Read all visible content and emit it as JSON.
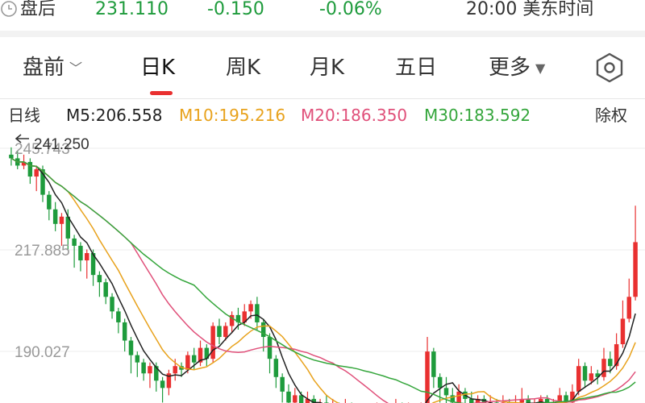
{
  "quote": {
    "session_label": "盘后",
    "price": "231.110",
    "change": "-0.150",
    "change_pct": "-0.06%",
    "time": "20:00 美东时间",
    "down_color": "#1e9b3c",
    "clock_icon": "clock-icon"
  },
  "tabs": [
    {
      "label": "盘前",
      "has_dropdown": true
    },
    {
      "label": "日K",
      "active": true
    },
    {
      "label": "周K"
    },
    {
      "label": "月K"
    },
    {
      "label": "五日"
    },
    {
      "label": "更多",
      "has_dropdown": true
    }
  ],
  "settings_icon": "hexagon-settings-icon",
  "ma_bar": {
    "label": "日线",
    "ma5": "M5:206.558",
    "ma10": "M10:195.216",
    "ma20": "M20:186.350",
    "ma30": "M30:183.592",
    "right_label": "除权"
  },
  "chart_data": {
    "type": "candlestick",
    "y_tick_labels": [
      "245.743",
      "217.885",
      "190.027"
    ],
    "y_ticks": [
      245.743,
      217.885,
      190.027
    ],
    "high_marker": "241.250",
    "up_color": "#e93030",
    "down_color": "#1e9b3c",
    "ma_colors": {
      "ma5": "#222222",
      "ma10": "#e8a21c",
      "ma20": "#e0507a",
      "ma30": "#35a63c"
    },
    "candles": [
      [
        244,
        243,
        246,
        241
      ],
      [
        243,
        241,
        245,
        240
      ],
      [
        241,
        242,
        244,
        240
      ],
      [
        242,
        238,
        243,
        236
      ],
      [
        238,
        240,
        241,
        234
      ],
      [
        240,
        233,
        241,
        231
      ],
      [
        233,
        229,
        234,
        226
      ],
      [
        229,
        225,
        231,
        223
      ],
      [
        225,
        227,
        228,
        219
      ],
      [
        227,
        221,
        229,
        218
      ],
      [
        221,
        219,
        222,
        213
      ],
      [
        219,
        215,
        220,
        212
      ],
      [
        215,
        217,
        218,
        210
      ],
      [
        217,
        211,
        218,
        208
      ],
      [
        211,
        209,
        212,
        205
      ],
      [
        209,
        205,
        210,
        203
      ],
      [
        205,
        201,
        206,
        199
      ],
      [
        201,
        198,
        202,
        195
      ],
      [
        198,
        193,
        199,
        190
      ],
      [
        193,
        189,
        194,
        184
      ],
      [
        189,
        187,
        190,
        183
      ],
      [
        187,
        184,
        188,
        182
      ],
      [
        184,
        186,
        187,
        180
      ],
      [
        186,
        182,
        187,
        179
      ],
      [
        182,
        180,
        183,
        176
      ],
      [
        180,
        184,
        185,
        178
      ],
      [
        184,
        186,
        188,
        182
      ],
      [
        186,
        185,
        187,
        183
      ],
      [
        185,
        189,
        190,
        184
      ],
      [
        189,
        187,
        191,
        185
      ],
      [
        187,
        191,
        193,
        186
      ],
      [
        191,
        188,
        192,
        186
      ],
      [
        188,
        197,
        198,
        187
      ],
      [
        197,
        194,
        199,
        192
      ],
      [
        194,
        197,
        198,
        193
      ],
      [
        197,
        200,
        201,
        195
      ],
      [
        200,
        198,
        202,
        196
      ],
      [
        198,
        201,
        203,
        197
      ],
      [
        201,
        203,
        204,
        199
      ],
      [
        203,
        198,
        205,
        196
      ],
      [
        198,
        194,
        199,
        190
      ],
      [
        194,
        188,
        195,
        184
      ],
      [
        188,
        183,
        189,
        180
      ],
      [
        183,
        179,
        184,
        176
      ],
      [
        179,
        176,
        181,
        174
      ],
      [
        176,
        178,
        180,
        174
      ],
      [
        178,
        175,
        179,
        173
      ],
      [
        175,
        177,
        179,
        174
      ],
      [
        177,
        174,
        178,
        172
      ],
      [
        174,
        176,
        177,
        172
      ],
      [
        176,
        174,
        178,
        172
      ],
      [
        174,
        175,
        177,
        173
      ],
      [
        175,
        173,
        176,
        171
      ],
      [
        173,
        175,
        177,
        172
      ],
      [
        175,
        172,
        176,
        171
      ],
      [
        172,
        173,
        175,
        170
      ],
      [
        173,
        171,
        174,
        169
      ],
      [
        171,
        173,
        175,
        170
      ],
      [
        173,
        174,
        176,
        172
      ],
      [
        174,
        172,
        175,
        171
      ],
      [
        172,
        173,
        175,
        170
      ],
      [
        173,
        175,
        177,
        172
      ],
      [
        175,
        173,
        176,
        172
      ],
      [
        173,
        174,
        176,
        172
      ],
      [
        174,
        172,
        175,
        170
      ],
      [
        172,
        174,
        176,
        171
      ],
      [
        174,
        190,
        194,
        173
      ],
      [
        190,
        183,
        191,
        180
      ],
      [
        183,
        180,
        184,
        176
      ],
      [
        180,
        178,
        183,
        175
      ],
      [
        178,
        176,
        180,
        174
      ],
      [
        176,
        179,
        181,
        175
      ],
      [
        179,
        177,
        180,
        175
      ],
      [
        177,
        175,
        179,
        174
      ],
      [
        175,
        177,
        178,
        173
      ],
      [
        177,
        175,
        178,
        173
      ],
      [
        175,
        176,
        178,
        174
      ],
      [
        176,
        174,
        177,
        172
      ],
      [
        174,
        176,
        178,
        173
      ],
      [
        176,
        175,
        177,
        173
      ],
      [
        175,
        176,
        178,
        174
      ],
      [
        176,
        177,
        180,
        175
      ],
      [
        177,
        175,
        178,
        174
      ],
      [
        175,
        176,
        177,
        174
      ],
      [
        176,
        177,
        178,
        175
      ],
      [
        177,
        174,
        178,
        173
      ],
      [
        174,
        176,
        177,
        173
      ],
      [
        176,
        178,
        180,
        175
      ],
      [
        178,
        176,
        179,
        175
      ],
      [
        176,
        179,
        181,
        175
      ],
      [
        179,
        186,
        188,
        178
      ],
      [
        186,
        182,
        187,
        180
      ],
      [
        182,
        184,
        186,
        181
      ],
      [
        184,
        183,
        185,
        181
      ],
      [
        183,
        188,
        191,
        182
      ],
      [
        188,
        186,
        190,
        184
      ],
      [
        186,
        192,
        195,
        185
      ],
      [
        192,
        199,
        204,
        191
      ],
      [
        199,
        205,
        210,
        198
      ],
      [
        205,
        220,
        230,
        204
      ]
    ]
  }
}
